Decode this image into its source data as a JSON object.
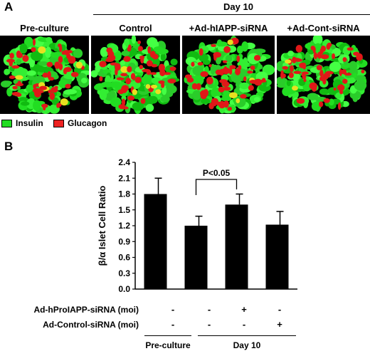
{
  "panel_a": {
    "letter": "A",
    "day_header": "Day 10",
    "images": [
      {
        "label": "Pre-culture"
      },
      {
        "label": "Control"
      },
      {
        "label": "+Ad-hIAPP-siRNA"
      },
      {
        "label": "+Ad-Cont-siRNA"
      }
    ],
    "legend": [
      {
        "label": "Insulin",
        "color": "#22dd22"
      },
      {
        "label": "Glucagon",
        "color": "#ee2222"
      }
    ]
  },
  "panel_b": {
    "letter": "B",
    "conditions": [
      {
        "label": "Ad-hProIAPP-siRNA (moi)",
        "signs": [
          "-",
          "-",
          "+",
          "-"
        ]
      },
      {
        "label": "Ad-Control-siRNA (moi)",
        "signs": [
          "-",
          "-",
          "-",
          "+"
        ]
      }
    ],
    "groups": [
      {
        "label": "Pre-culture"
      },
      {
        "label": "Day 10"
      }
    ]
  },
  "chart_data": {
    "type": "bar",
    "categories": [
      "1",
      "2",
      "3",
      "4"
    ],
    "values": [
      1.8,
      1.2,
      1.6,
      1.22
    ],
    "errors": [
      0.3,
      0.18,
      0.2,
      0.25
    ],
    "ylabel": "β/α Islet Cell Ratio",
    "ylim": [
      0,
      2.4
    ],
    "yticks": [
      "0.0",
      "0.3",
      "0.6",
      "0.9",
      "1.2",
      "1.5",
      "1.8",
      "2.1",
      "2.4"
    ],
    "annotation": {
      "text": "P<0.05",
      "from": 1,
      "to": 2
    },
    "bar_color": "#000000"
  }
}
